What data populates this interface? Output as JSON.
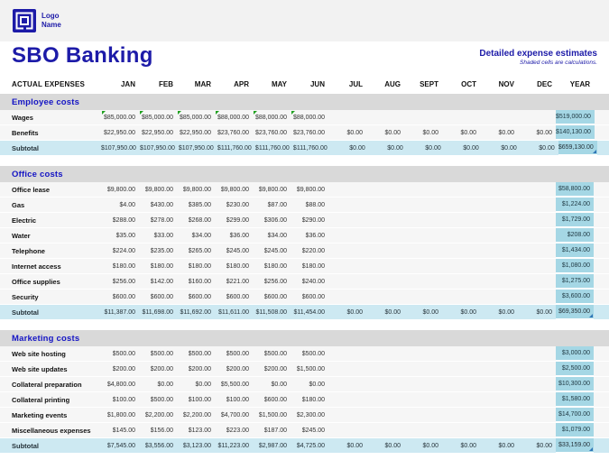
{
  "colors": {
    "accent": "#1d1ba8",
    "bar": "#d9d9d9",
    "subtotal": "#cde9f2",
    "yearcell": "#a5d7e5",
    "flag": "#1fa11f",
    "corner": "#2e75b6"
  },
  "header": {
    "logo_line1": "Logo",
    "logo_line2": "Name",
    "title": "SBO Banking",
    "subtitle": "Detailed expense estimates",
    "note": "Shaded cells are calculations."
  },
  "table": {
    "label_header": "ACTUAL EXPENSES",
    "months": [
      "JAN",
      "FEB",
      "MAR",
      "APR",
      "MAY",
      "JUN",
      "JUL",
      "AUG",
      "SEPT",
      "OCT",
      "NOV",
      "DEC"
    ],
    "year_label": "YEAR",
    "sections": [
      {
        "title": "Employee costs",
        "rows": [
          {
            "label": "Wages",
            "cells": [
              "$85,000.00",
              "$85,000.00",
              "$85,000.00",
              "$88,000.00",
              "$88,000.00",
              "$88,000.00",
              "",
              "",
              "",
              "",
              "",
              ""
            ],
            "year": "$519,000.00",
            "flags": [
              0,
              1,
              2,
              3,
              4,
              5
            ]
          },
          {
            "label": "Benefits",
            "cells": [
              "$22,950.00",
              "$22,950.00",
              "$22,950.00",
              "$23,760.00",
              "$23,760.00",
              "$23,760.00",
              "$0.00",
              "$0.00",
              "$0.00",
              "$0.00",
              "$0.00",
              "$0.00"
            ],
            "year": "$140,130.00"
          }
        ],
        "subtotal": {
          "label": "Subtotal",
          "cells": [
            "$107,950.00",
            "$107,950.00",
            "$107,950.00",
            "$111,760.00",
            "$111,760.00",
            "$111,760.00",
            "$0.00",
            "$0.00",
            "$0.00",
            "$0.00",
            "$0.00",
            "$0.00"
          ],
          "year": "$659,130.00",
          "corner": true
        }
      },
      {
        "title": "Office costs",
        "rows": [
          {
            "label": "Office lease",
            "cells": [
              "$9,800.00",
              "$9,800.00",
              "$9,800.00",
              "$9,800.00",
              "$9,800.00",
              "$9,800.00",
              "",
              "",
              "",
              "",
              "",
              ""
            ],
            "year": "$58,800.00"
          },
          {
            "label": "Gas",
            "cells": [
              "$4.00",
              "$430.00",
              "$385.00",
              "$230.00",
              "$87.00",
              "$88.00",
              "",
              "",
              "",
              "",
              "",
              ""
            ],
            "year": "$1,224.00"
          },
          {
            "label": "Electric",
            "cells": [
              "$288.00",
              "$278.00",
              "$268.00",
              "$299.00",
              "$306.00",
              "$290.00",
              "",
              "",
              "",
              "",
              "",
              ""
            ],
            "year": "$1,729.00"
          },
          {
            "label": "Water",
            "cells": [
              "$35.00",
              "$33.00",
              "$34.00",
              "$36.00",
              "$34.00",
              "$36.00",
              "",
              "",
              "",
              "",
              "",
              ""
            ],
            "year": "$208.00"
          },
          {
            "label": "Telephone",
            "cells": [
              "$224.00",
              "$235.00",
              "$265.00",
              "$245.00",
              "$245.00",
              "$220.00",
              "",
              "",
              "",
              "",
              "",
              ""
            ],
            "year": "$1,434.00"
          },
          {
            "label": "Internet access",
            "cells": [
              "$180.00",
              "$180.00",
              "$180.00",
              "$180.00",
              "$180.00",
              "$180.00",
              "",
              "",
              "",
              "",
              "",
              ""
            ],
            "year": "$1,080.00"
          },
          {
            "label": "Office supplies",
            "cells": [
              "$256.00",
              "$142.00",
              "$160.00",
              "$221.00",
              "$256.00",
              "$240.00",
              "",
              "",
              "",
              "",
              "",
              ""
            ],
            "year": "$1,275.00"
          },
          {
            "label": "Security",
            "cells": [
              "$600.00",
              "$600.00",
              "$600.00",
              "$600.00",
              "$600.00",
              "$600.00",
              "",
              "",
              "",
              "",
              "",
              ""
            ],
            "year": "$3,600.00"
          }
        ],
        "subtotal": {
          "label": "Subtotal",
          "cells": [
            "$11,387.00",
            "$11,698.00",
            "$11,692.00",
            "$11,611.00",
            "$11,508.00",
            "$11,454.00",
            "$0.00",
            "$0.00",
            "$0.00",
            "$0.00",
            "$0.00",
            "$0.00"
          ],
          "year": "$69,350.00",
          "corner": true
        }
      },
      {
        "title": "Marketing costs",
        "rows": [
          {
            "label": "Web site hosting",
            "cells": [
              "$500.00",
              "$500.00",
              "$500.00",
              "$500.00",
              "$500.00",
              "$500.00",
              "",
              "",
              "",
              "",
              "",
              ""
            ],
            "year": "$3,000.00"
          },
          {
            "label": "Web site updates",
            "cells": [
              "$200.00",
              "$200.00",
              "$200.00",
              "$200.00",
              "$200.00",
              "$1,500.00",
              "",
              "",
              "",
              "",
              "",
              ""
            ],
            "year": "$2,500.00"
          },
          {
            "label": "Collateral preparation",
            "cells": [
              "$4,800.00",
              "$0.00",
              "$0.00",
              "$5,500.00",
              "$0.00",
              "$0.00",
              "",
              "",
              "",
              "",
              "",
              ""
            ],
            "year": "$10,300.00"
          },
          {
            "label": "Collateral printing",
            "cells": [
              "$100.00",
              "$500.00",
              "$100.00",
              "$100.00",
              "$600.00",
              "$180.00",
              "",
              "",
              "",
              "",
              "",
              ""
            ],
            "year": "$1,580.00"
          },
          {
            "label": "Marketing events",
            "cells": [
              "$1,800.00",
              "$2,200.00",
              "$2,200.00",
              "$4,700.00",
              "$1,500.00",
              "$2,300.00",
              "",
              "",
              "",
              "",
              "",
              ""
            ],
            "year": "$14,700.00"
          },
          {
            "label": "Miscellaneous expenses",
            "cells": [
              "$145.00",
              "$156.00",
              "$123.00",
              "$223.00",
              "$187.00",
              "$245.00",
              "",
              "",
              "",
              "",
              "",
              ""
            ],
            "year": "$1,079.00"
          }
        ],
        "subtotal": {
          "label": "Subtotal",
          "cells": [
            "$7,545.00",
            "$3,556.00",
            "$3,123.00",
            "$11,223.00",
            "$2,987.00",
            "$4,725.00",
            "$0.00",
            "$0.00",
            "$0.00",
            "$0.00",
            "$0.00",
            "$0.00"
          ],
          "year": "$33,159.00",
          "corner": true
        }
      }
    ]
  }
}
